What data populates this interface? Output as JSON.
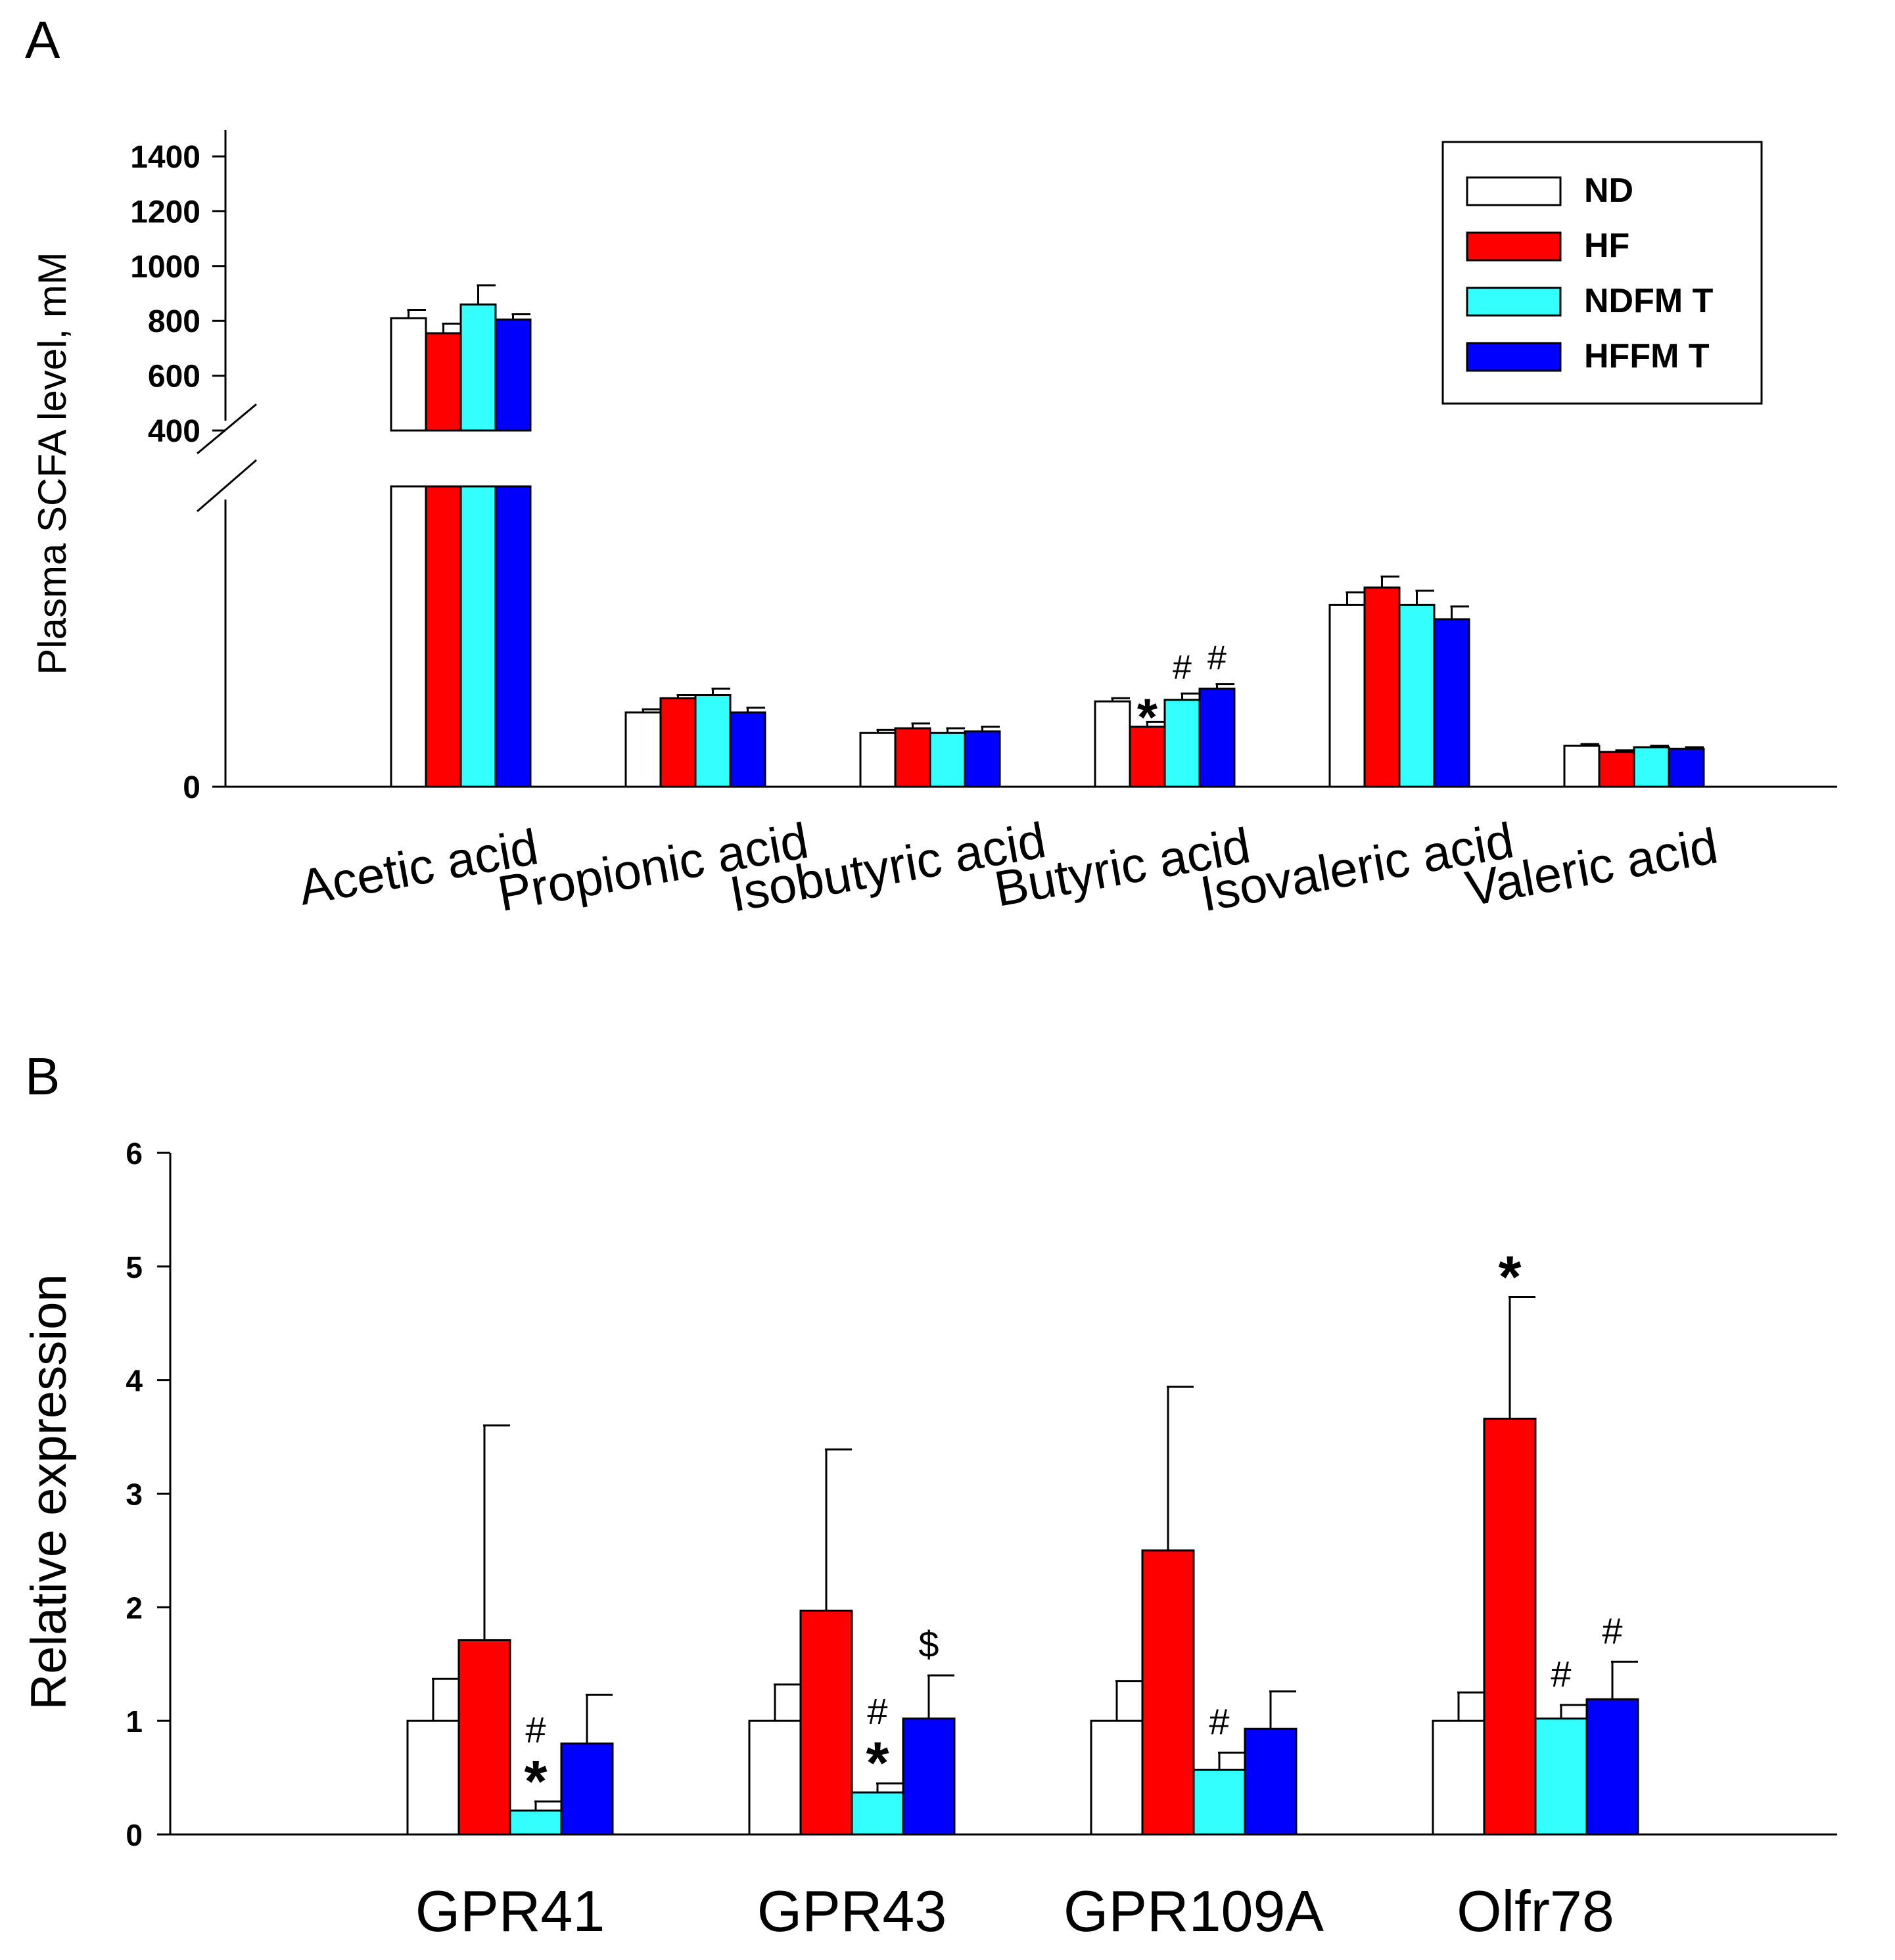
{
  "figure": {
    "panels": [
      {
        "label": "A"
      },
      {
        "label": "B"
      }
    ]
  },
  "colors": {
    "ND": "#ffffff",
    "HF": "#ff0000",
    "NDFMT": "#33ffff",
    "HFFMT": "#0000ff",
    "axis": "#000000"
  },
  "chart_data": [
    {
      "panel": "A",
      "type": "bar",
      "ylabel": "Plasma SCFA level, mM",
      "broken_axis": true,
      "ylim_upper": [
        400,
        1400
      ],
      "yticks_upper": [
        400,
        600,
        800,
        1000,
        1200,
        1400
      ],
      "yticks_lower": [
        0
      ],
      "categories": [
        "Acetic acid",
        "Propionic acid",
        "Isobutyric acid",
        "Butyric acid",
        "Isovaleric acid",
        "Valeric acid"
      ],
      "legend": {
        "position": "top-right",
        "entries": [
          "ND",
          "HF",
          "NDFM T",
          "HFFM T"
        ]
      },
      "series": [
        {
          "name": "ND",
          "color": "#ffffff",
          "values": [
            810,
            47,
            34,
            54,
            115,
            26
          ],
          "errors": [
            30,
            2,
            2,
            2,
            8,
            1
          ]
        },
        {
          "name": "HF",
          "color": "#ff0000",
          "values": [
            755,
            56,
            37,
            38,
            126,
            22
          ],
          "errors": [
            35,
            2,
            3,
            3,
            7,
            1
          ]
        },
        {
          "name": "NDFM T",
          "color": "#33ffff",
          "values": [
            860,
            58,
            34,
            55,
            115,
            25
          ],
          "errors": [
            70,
            4,
            3,
            4,
            9,
            1
          ]
        },
        {
          "name": "HFFM T",
          "color": "#0000ff",
          "values": [
            805,
            47,
            35,
            62,
            106,
            24
          ],
          "errors": [
            20,
            3,
            3,
            3,
            8,
            1
          ]
        }
      ],
      "annotations": [
        {
          "category": "Butyric acid",
          "series": "HF",
          "text": "*"
        },
        {
          "category": "Butyric acid",
          "series": "NDFM T",
          "text": "#"
        },
        {
          "category": "Butyric acid",
          "series": "HFFM T",
          "text": "#"
        }
      ]
    },
    {
      "panel": "B",
      "type": "bar",
      "ylabel": "Relative expression",
      "ylim": [
        0,
        6
      ],
      "yticks": [
        0,
        1,
        2,
        3,
        4,
        5,
        6
      ],
      "categories": [
        "GPR41",
        "GPR43",
        "GPR109A",
        "Olfr78"
      ],
      "series": [
        {
          "name": "ND",
          "color": "#ffffff",
          "values": [
            1.0,
            1.0,
            1.0,
            1.0
          ],
          "errors": [
            0.37,
            0.32,
            0.35,
            0.25
          ]
        },
        {
          "name": "HF",
          "color": "#ff0000",
          "values": [
            1.71,
            1.97,
            2.5,
            3.66
          ],
          "errors": [
            1.89,
            1.42,
            1.44,
            1.07
          ]
        },
        {
          "name": "NDFM T",
          "color": "#33ffff",
          "values": [
            0.21,
            0.37,
            0.57,
            1.02
          ],
          "errors": [
            0.08,
            0.08,
            0.15,
            0.12
          ]
        },
        {
          "name": "HFFM T",
          "color": "#0000ff",
          "values": [
            0.8,
            1.02,
            0.93,
            1.19
          ],
          "errors": [
            0.43,
            0.38,
            0.33,
            0.33
          ]
        }
      ],
      "annotations": [
        {
          "category": "GPR41",
          "series": "NDFM T",
          "text": "*",
          "stack": 0
        },
        {
          "category": "GPR41",
          "series": "NDFM T",
          "text": "#",
          "stack": 1
        },
        {
          "category": "GPR43",
          "series": "NDFM T",
          "text": "*",
          "stack": 0
        },
        {
          "category": "GPR43",
          "series": "NDFM T",
          "text": "#",
          "stack": 1
        },
        {
          "category": "GPR43",
          "series": "HFFM T",
          "text": "$",
          "stack": 0
        },
        {
          "category": "GPR109A",
          "series": "NDFM T",
          "text": "#",
          "stack": 0
        },
        {
          "category": "Olfr78",
          "series": "HF",
          "text": "*",
          "stack": 0
        },
        {
          "category": "Olfr78",
          "series": "NDFM T",
          "text": "#",
          "stack": 0
        },
        {
          "category": "Olfr78",
          "series": "HFFM T",
          "text": "#",
          "stack": 0
        }
      ]
    }
  ]
}
